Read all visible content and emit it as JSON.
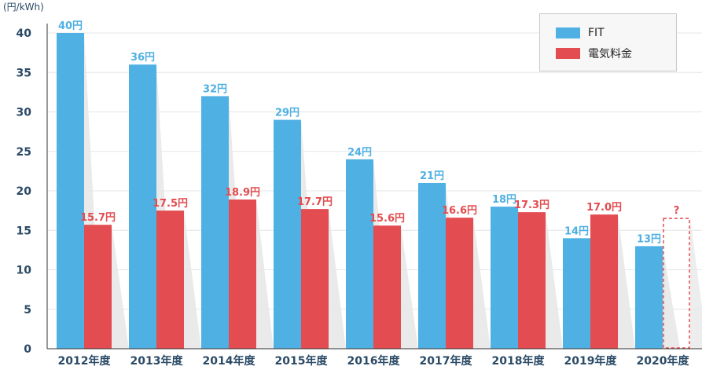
{
  "chart_data": {
    "type": "bar",
    "unit_label": "(円/kWh)",
    "categories": [
      "2012年度",
      "2013年度",
      "2014年度",
      "2015年度",
      "2016年度",
      "2017年度",
      "2018年度",
      "2019年度",
      "2020年度"
    ],
    "yticks": [
      "0",
      "5",
      "10",
      "15",
      "20",
      "25",
      "30",
      "35",
      "40"
    ],
    "ylim": [
      0,
      40
    ],
    "grid": true,
    "legend_position": "top-right",
    "series": [
      {
        "name": "FIT",
        "color": "#4fb0e3",
        "values": [
          40,
          36,
          32,
          29,
          24,
          21,
          18,
          14,
          13
        ],
        "labels": [
          "40円",
          "36円",
          "32円",
          "29円",
          "24円",
          "21円",
          "18円",
          "14円",
          "13円"
        ]
      },
      {
        "name": "電気料金",
        "color": "#e34c50",
        "values": [
          15.7,
          17.5,
          18.9,
          17.7,
          15.6,
          16.6,
          17.3,
          17.0,
          null
        ],
        "labels": [
          "15.7円",
          "17.5円",
          "18.9円",
          "17.7円",
          "15.6円",
          "16.6円",
          "17.3円",
          "17.0円",
          "?"
        ]
      }
    ],
    "unknown_marker": "?"
  }
}
